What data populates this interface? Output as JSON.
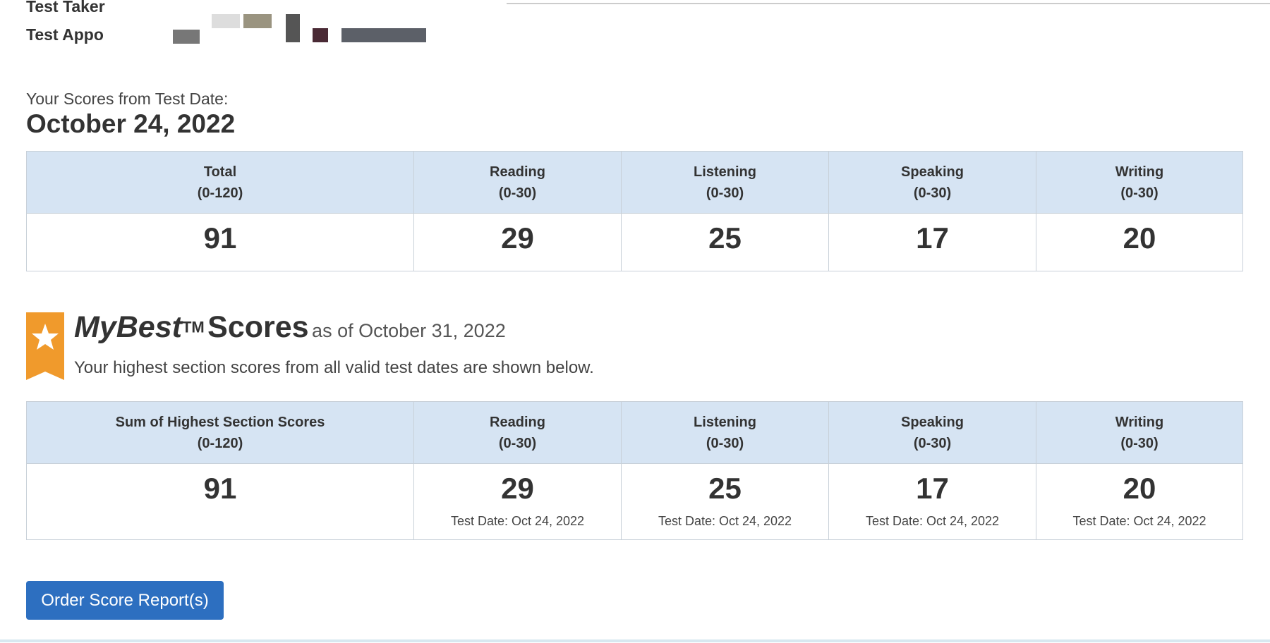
{
  "header": {
    "test_taker_label": "Test Taker",
    "test_appointment_label": "Test Appo"
  },
  "scores": {
    "intro": "Your Scores from Test Date:",
    "date": "October 24, 2022",
    "cells": [
      {
        "header": "Total",
        "range": "(0-120)",
        "score": 91
      },
      {
        "header": "Reading",
        "range": "(0-30)",
        "score": 29
      },
      {
        "header": "Listening",
        "range": "(0-30)",
        "score": 25
      },
      {
        "header": "Speaking",
        "range": "(0-30)",
        "score": 17
      },
      {
        "header": "Writing",
        "range": "(0-30)",
        "score": 20
      }
    ]
  },
  "mybest": {
    "title_italic": "MyBest",
    "trademark": "TM",
    "title_rest": "Scores",
    "as_of": "as of October 31, 2022",
    "subtitle": "Your highest section scores from all valid test dates are shown below.",
    "cells": [
      {
        "header": "Sum of Highest Section Scores",
        "range": "(0-120)",
        "score": 91
      },
      {
        "header": "Reading",
        "range": "(0-30)",
        "score": 29,
        "test_date": "Test Date: Oct 24, 2022"
      },
      {
        "header": "Listening",
        "range": "(0-30)",
        "score": 25,
        "test_date": "Test Date: Oct 24, 2022"
      },
      {
        "header": "Speaking",
        "range": "(0-30)",
        "score": 17,
        "test_date": "Test Date: Oct 24, 2022"
      },
      {
        "header": "Writing",
        "range": "(0-30)",
        "score": 20,
        "test_date": "Test Date: Oct 24, 2022"
      }
    ]
  },
  "button": "Order Score Report(s)"
}
